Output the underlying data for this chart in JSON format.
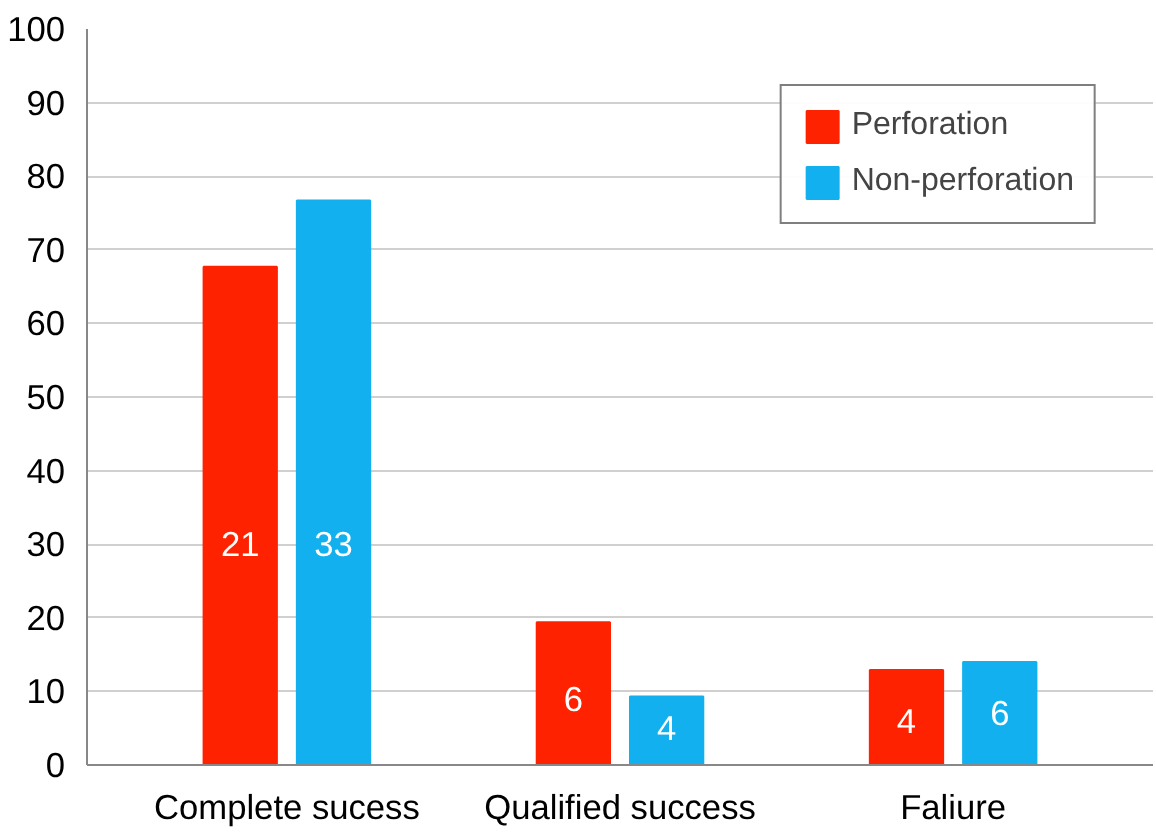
{
  "chart_data": {
    "type": "bar",
    "categories": [
      "Complete sucess",
      "Qualified success",
      "Faliure"
    ],
    "series": [
      {
        "name": "Perforation",
        "color": "#ff2200",
        "values": [
          67.7,
          19.4,
          12.9
        ]
      },
      {
        "name": "Non-perforation",
        "color": "#12b0ef",
        "values": [
          76.7,
          9.3,
          14.0
        ]
      }
    ],
    "annotations": [
      {
        "text": "21",
        "x": "Complete sucess",
        "y": 30
      },
      {
        "text": "6",
        "x": "Qualified success",
        "y": 9
      },
      {
        "text": "4",
        "x": "Faliure",
        "y": 6
      },
      {
        "text": "33",
        "x": "Complete sucess",
        "y": 30
      },
      {
        "text": "4",
        "x": "Qualified success",
        "y": 5
      },
      {
        "text": "6",
        "x": "Faliure",
        "y": 7
      }
    ],
    "ylim": [
      0,
      100
    ],
    "yticks": [
      0,
      10,
      20,
      30,
      40,
      50,
      60,
      70,
      80,
      90,
      100
    ],
    "grid": "y",
    "legend": "top right"
  }
}
